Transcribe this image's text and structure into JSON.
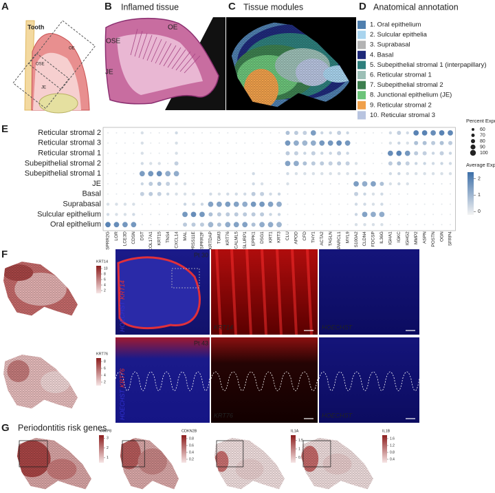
{
  "figure": {
    "A": {
      "label": "A",
      "tooth": "Tooth",
      "ose": "OSE",
      "oe": "OE",
      "je": "JE"
    },
    "B": {
      "label": "B",
      "title": "Inflamed tissue",
      "oe": "OE",
      "ose": "OSE",
      "je": "JE"
    },
    "C": {
      "label": "C",
      "title": "Tissue modules"
    },
    "D": {
      "label": "D",
      "title": "Anatomical annotation",
      "items": [
        {
          "name": "1. Oral epithelium",
          "color": "#4f7fae"
        },
        {
          "name": "2. Sulcular epithelia",
          "color": "#a9d4ee"
        },
        {
          "name": "3. Suprabasal",
          "color": "#b3b3b3"
        },
        {
          "name": "4. Basal",
          "color": "#1f2a7a"
        },
        {
          "name": "5. Subepithelial stromal 1 (interpapillary)",
          "color": "#2e7f7c"
        },
        {
          "name": "6. Reticular stromal 1",
          "color": "#9cbfb6"
        },
        {
          "name": "7. Subepithelial stromal 2",
          "color": "#3d7f4f"
        },
        {
          "name": "8. Junctional epithelium (JE)",
          "color": "#6cc47a"
        },
        {
          "name": "9. Reticular stromal 2",
          "color": "#f0a04b"
        },
        {
          "name": "10. Reticular stromal 3",
          "color": "#b8c4e0"
        }
      ]
    },
    "F": {
      "label": "F",
      "maps": [
        {
          "gene": "KRT14",
          "ticks": [
            2,
            4,
            6,
            8,
            10
          ],
          "lim": [
            1,
            11
          ]
        },
        {
          "gene": "KRT76",
          "ticks": [
            2,
            4,
            6,
            8
          ],
          "lim": [
            1,
            9
          ]
        }
      ],
      "rows": [
        {
          "patient": "Pt 30",
          "hoechst": "HOECHST",
          "gene": "KRT14"
        },
        {
          "patient": "Pt 43",
          "hoechst": "HOECHST",
          "gene": "KRT76"
        }
      ]
    },
    "G": {
      "label": "G",
      "title": "Periodontitis risk genes",
      "maps": [
        {
          "gene": "VAMP8",
          "ticks": [
            1,
            2,
            3
          ],
          "lim": [
            0.5,
            3.3
          ]
        },
        {
          "gene": "CDKN2B",
          "ticks": [
            0.2,
            0.4,
            0.6,
            0.8
          ],
          "lim": [
            0.1,
            0.9
          ]
        },
        {
          "gene": "IL1A",
          "ticks": [
            0.5,
            1,
            1.5
          ],
          "lim": [
            0.2,
            1.8
          ]
        },
        {
          "gene": "IL1B",
          "ticks": [
            0.4,
            0.8,
            1.2,
            1.6
          ],
          "lim": [
            0.2,
            1.8
          ]
        }
      ]
    }
  },
  "chart_data": {
    "type": "dot",
    "panel_label": "E",
    "rows": [
      "Reticular stromal 2",
      "Reticular stromal 3",
      "Reticular stromal 1",
      "Subepithelial stromal 2",
      "Subepithelial stromal 1",
      "JE",
      "Basal",
      "Suprabasal",
      "Sulcular epithelium",
      "Oral epithelium"
    ],
    "columns": [
      "SPRR2G",
      "LOR",
      "LCE3D",
      "CDSN",
      "DST",
      "COL17A1",
      "KRT15",
      "TNS4",
      "CXCL14",
      "MAL",
      "TMPRSS11E",
      "SPRR2F",
      "KRTDAP",
      "TGM3",
      "KRT76",
      "CALML5",
      "SLURP1",
      "EPPK1",
      "DSG1",
      "KRT1",
      "KRT3",
      "CLU",
      "APOD",
      "CFD",
      "THY1",
      "ACTA2",
      "TAGLN",
      "SPARCL1",
      "MYL9",
      "S100A2",
      "CLDN4",
      "FDCSP",
      "IL36G",
      "IGHA1",
      "IGKC",
      "IGHG2",
      "MMP2",
      "ASPN",
      "POSTN",
      "OGN",
      "SFRP4"
    ],
    "avg_expression": [
      [
        0,
        0,
        0,
        0,
        0.2,
        0,
        0,
        0,
        0.3,
        0,
        0,
        0,
        0,
        0,
        0,
        0,
        0,
        0,
        0,
        0,
        0,
        0.8,
        0.6,
        0.5,
        1.5,
        0.4,
        0.4,
        0.5,
        0.4,
        0,
        0,
        0,
        0,
        0.3,
        0.5,
        0.3,
        2,
        2,
        1.8,
        2,
        1.9
      ],
      [
        0,
        0,
        0,
        0,
        0.2,
        0,
        0,
        0,
        0.2,
        0,
        0,
        0,
        0,
        0,
        0,
        0,
        0,
        0,
        0,
        0,
        0,
        1.6,
        1.2,
        1,
        1.2,
        1.6,
        1.6,
        1.8,
        1.6,
        0,
        0,
        0,
        0,
        0.2,
        0.4,
        0.2,
        0.8,
        0.8,
        0.6,
        0.8,
        0.6
      ],
      [
        0,
        0,
        0,
        0,
        0.2,
        0,
        0,
        0,
        0.2,
        0,
        0,
        0,
        0,
        0,
        0,
        0,
        0,
        0,
        0,
        0,
        0,
        0.6,
        0.5,
        0.4,
        0.5,
        0.4,
        0.4,
        0.5,
        0.4,
        0,
        0,
        0,
        0,
        1.8,
        2,
        1.6,
        0.6,
        0.5,
        0.4,
        0.5,
        0.4
      ],
      [
        0,
        0,
        0,
        0,
        0.3,
        0.2,
        0.2,
        0.1,
        0.5,
        0,
        0,
        0,
        0,
        0,
        0,
        0,
        0,
        0,
        0,
        0,
        0,
        1.4,
        1.2,
        0.8,
        0.6,
        0.6,
        0.5,
        0.6,
        0.5,
        0.2,
        0,
        0,
        0,
        0.6,
        0.8,
        0.5,
        0.4,
        0.4,
        0.3,
        0.4,
        0.3
      ],
      [
        0,
        0,
        0,
        0,
        1.5,
        1.6,
        1.8,
        1.2,
        1.2,
        0,
        0,
        0,
        0,
        0,
        0,
        0,
        0,
        0.3,
        0,
        0,
        0,
        0.3,
        0.2,
        0.2,
        0.2,
        0.2,
        0.2,
        0.2,
        0.2,
        0.3,
        0.2,
        0,
        0,
        0.3,
        0.4,
        0.2,
        0.2,
        0.2,
        0.2,
        0.2,
        0.2
      ],
      [
        0,
        0,
        0,
        0,
        0.4,
        0.6,
        0.8,
        0.5,
        0.2,
        0.2,
        0,
        0,
        0,
        0,
        0,
        0,
        0,
        0.3,
        0.2,
        0,
        0,
        0.2,
        0.1,
        0.1,
        0.1,
        0.1,
        0.1,
        0.1,
        0.1,
        1.5,
        1.2,
        1.4,
        0.8,
        0.2,
        0.3,
        0.2,
        0.1,
        0.1,
        0.1,
        0.1,
        0.1
      ],
      [
        0,
        0,
        0,
        0,
        0.5,
        0.6,
        0.5,
        0.4,
        0.2,
        0.2,
        0.2,
        0,
        0.3,
        0.2,
        0.3,
        0.3,
        0.3,
        0.6,
        0.5,
        0.3,
        0.4,
        0.1,
        0,
        0,
        0,
        0,
        0,
        0,
        0,
        0.5,
        0.4,
        0.2,
        0.3,
        0.1,
        0.1,
        0.1,
        0,
        0,
        0,
        0,
        0
      ],
      [
        0.2,
        0.2,
        0.2,
        0.2,
        0.1,
        0.1,
        0.1,
        0.1,
        0,
        0.4,
        0.3,
        0.4,
        1.4,
        1.4,
        1.5,
        1.4,
        1.2,
        1.6,
        1.6,
        1.4,
        1.2,
        0,
        0,
        0,
        0,
        0,
        0,
        0,
        0,
        0.3,
        0.3,
        0.2,
        0.3,
        0,
        0,
        0,
        0,
        0,
        0,
        0,
        0
      ],
      [
        0.3,
        0.2,
        0.2,
        0.3,
        0.1,
        0.1,
        0.1,
        0.1,
        0,
        1.6,
        1.8,
        1.6,
        0.8,
        0.6,
        0.6,
        0.6,
        0.6,
        0.6,
        0.6,
        0.4,
        0.4,
        0,
        0,
        0,
        0,
        0,
        0,
        0,
        0,
        0.4,
        1.4,
        1.2,
        1.2,
        0.1,
        0.1,
        0.1,
        0,
        0,
        0,
        0,
        0
      ],
      [
        2,
        1.8,
        1.6,
        1.6,
        0.1,
        0.1,
        0.1,
        0.1,
        0,
        0.6,
        0.6,
        0.6,
        1,
        0.8,
        1.2,
        1.4,
        1.4,
        0.8,
        1.2,
        1.2,
        1,
        0,
        0,
        0,
        0,
        0,
        0,
        0,
        0,
        0.2,
        0.2,
        0.2,
        0.2,
        0,
        0,
        0,
        0,
        0,
        0,
        0,
        0
      ]
    ],
    "percent_expressed": [
      [
        40,
        40,
        40,
        40,
        65,
        40,
        40,
        40,
        65,
        40,
        40,
        40,
        40,
        40,
        40,
        40,
        40,
        40,
        40,
        40,
        40,
        80,
        80,
        80,
        95,
        65,
        65,
        80,
        65,
        40,
        40,
        40,
        40,
        65,
        80,
        65,
        95,
        95,
        95,
        95,
        95
      ],
      [
        40,
        40,
        40,
        40,
        65,
        40,
        40,
        40,
        65,
        40,
        40,
        40,
        40,
        40,
        40,
        40,
        40,
        40,
        40,
        40,
        40,
        95,
        95,
        95,
        95,
        95,
        95,
        95,
        95,
        40,
        40,
        40,
        40,
        65,
        65,
        65,
        80,
        80,
        80,
        80,
        80
      ],
      [
        40,
        40,
        40,
        40,
        65,
        40,
        40,
        40,
        65,
        40,
        40,
        40,
        40,
        40,
        40,
        40,
        40,
        40,
        40,
        40,
        40,
        80,
        80,
        65,
        80,
        65,
        65,
        80,
        65,
        40,
        40,
        40,
        40,
        95,
        95,
        95,
        80,
        80,
        65,
        80,
        65
      ],
      [
        40,
        40,
        40,
        40,
        65,
        65,
        65,
        40,
        80,
        40,
        40,
        40,
        40,
        40,
        40,
        40,
        40,
        40,
        40,
        40,
        40,
        95,
        95,
        80,
        80,
        80,
        80,
        80,
        80,
        65,
        40,
        40,
        40,
        80,
        80,
        80,
        65,
        65,
        65,
        65,
        65
      ],
      [
        40,
        40,
        40,
        40,
        95,
        95,
        95,
        95,
        95,
        40,
        40,
        40,
        40,
        40,
        40,
        40,
        40,
        65,
        40,
        40,
        40,
        65,
        65,
        65,
        65,
        65,
        65,
        65,
        65,
        65,
        65,
        40,
        40,
        65,
        65,
        65,
        65,
        65,
        65,
        65,
        65
      ],
      [
        40,
        40,
        40,
        40,
        65,
        80,
        80,
        80,
        65,
        65,
        40,
        40,
        40,
        40,
        40,
        40,
        40,
        65,
        65,
        40,
        40,
        65,
        40,
        40,
        40,
        40,
        40,
        40,
        40,
        95,
        95,
        95,
        80,
        65,
        65,
        65,
        40,
        40,
        40,
        40,
        40
      ],
      [
        40,
        40,
        40,
        40,
        80,
        80,
        80,
        65,
        65,
        65,
        65,
        40,
        65,
        65,
        65,
        65,
        65,
        80,
        80,
        65,
        65,
        40,
        40,
        40,
        40,
        40,
        40,
        40,
        40,
        80,
        65,
        65,
        65,
        40,
        40,
        40,
        40,
        40,
        40,
        40,
        40
      ],
      [
        65,
        65,
        65,
        65,
        40,
        40,
        40,
        40,
        40,
        65,
        65,
        65,
        95,
        95,
        95,
        95,
        95,
        95,
        95,
        95,
        95,
        40,
        40,
        40,
        40,
        40,
        40,
        40,
        40,
        65,
        65,
        65,
        65,
        40,
        40,
        40,
        40,
        40,
        40,
        40,
        40
      ],
      [
        65,
        65,
        65,
        65,
        40,
        40,
        40,
        40,
        40,
        95,
        95,
        95,
        80,
        80,
        80,
        80,
        80,
        80,
        80,
        65,
        65,
        40,
        40,
        40,
        40,
        40,
        40,
        40,
        40,
        65,
        95,
        95,
        95,
        40,
        40,
        40,
        40,
        40,
        40,
        40,
        40
      ],
      [
        95,
        95,
        95,
        95,
        40,
        40,
        40,
        40,
        40,
        80,
        80,
        80,
        95,
        80,
        95,
        95,
        95,
        80,
        95,
        95,
        95,
        40,
        40,
        40,
        40,
        40,
        40,
        40,
        40,
        65,
        65,
        65,
        65,
        40,
        40,
        40,
        40,
        40,
        40,
        40,
        40
      ]
    ],
    "size_legend": {
      "title": "Percent Expressed",
      "values": [
        60,
        70,
        80,
        90,
        100
      ]
    },
    "color_legend": {
      "title": "Average Expression",
      "ticks": [
        0,
        1,
        2
      ],
      "lim": [
        -0.2,
        2.4
      ],
      "color_low": "#f3f3f3",
      "color_high": "#3d6fa8"
    }
  }
}
